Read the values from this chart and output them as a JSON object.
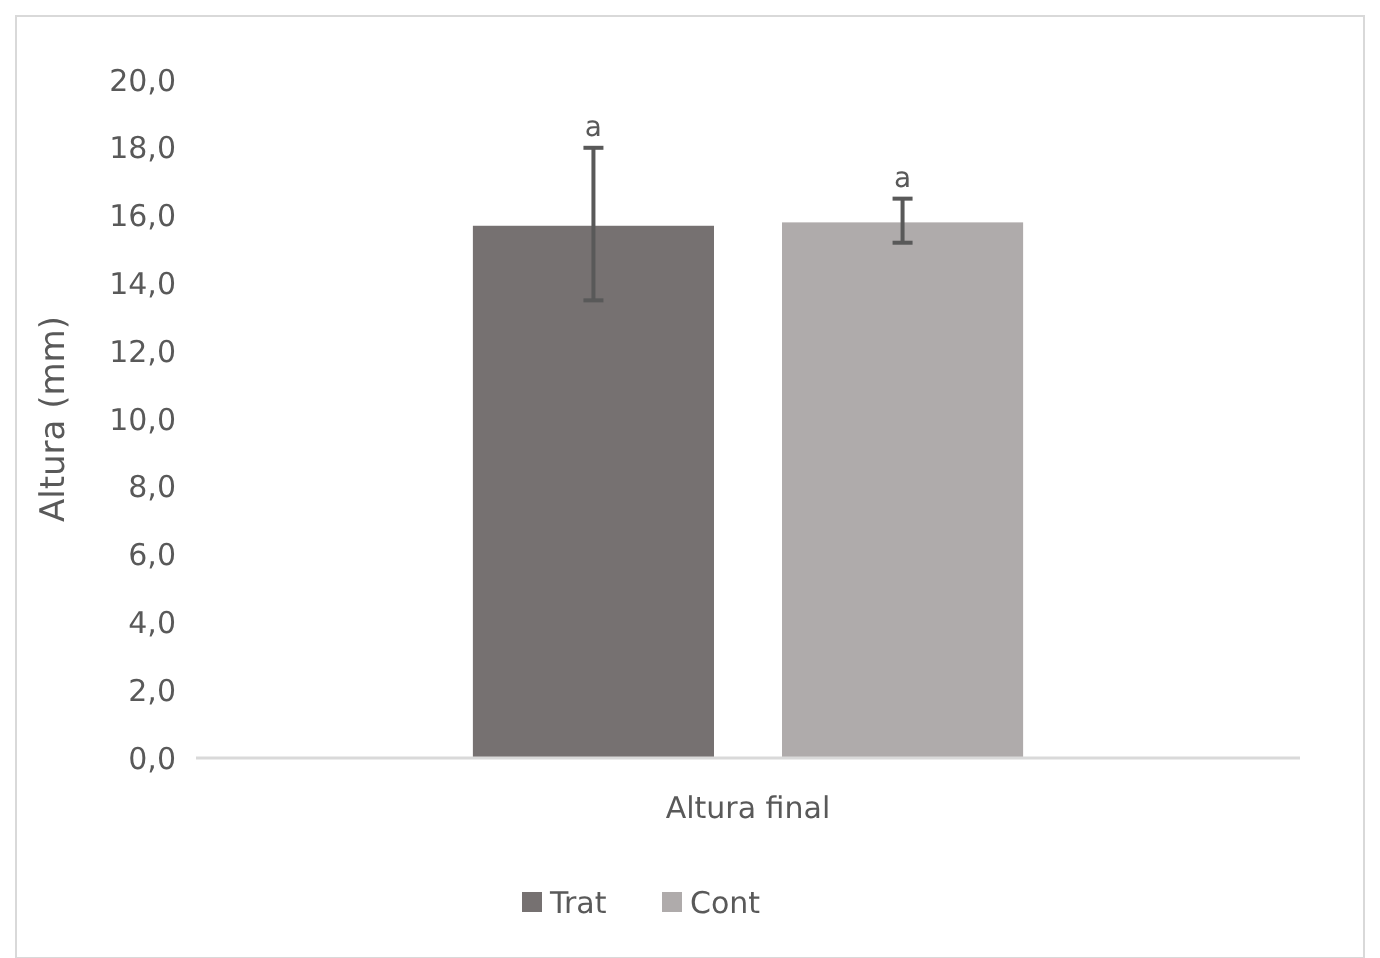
{
  "chart_data": {
    "type": "bar",
    "ylabel": "Altura (mm)",
    "categories": [
      "Altura final"
    ],
    "series": [
      {
        "name": "Trat",
        "color": "#767171",
        "values": [
          15.7
        ],
        "errors": [
          [
            13.5,
            18.0
          ]
        ]
      },
      {
        "name": "Cont",
        "color": "#afabab",
        "values": [
          15.8
        ],
        "errors": [
          [
            15.2,
            16.5
          ]
        ]
      }
    ],
    "ylim": [
      0,
      20
    ],
    "yticks": [
      {
        "value": 0,
        "label": "0,0"
      },
      {
        "value": 2,
        "label": "2,0"
      },
      {
        "value": 4,
        "label": "4,0"
      },
      {
        "value": 6,
        "label": "6,0"
      },
      {
        "value": 8,
        "label": "8,0"
      },
      {
        "value": 10,
        "label": "10,0"
      },
      {
        "value": 12,
        "label": "12,0"
      },
      {
        "value": 14,
        "label": "14,0"
      },
      {
        "value": 16,
        "label": "16,0"
      },
      {
        "value": 18,
        "label": "18,0"
      },
      {
        "value": 20,
        "label": "20,0"
      }
    ],
    "annotations": [
      "a",
      "a"
    ],
    "legend": "bottom",
    "grid": false
  }
}
